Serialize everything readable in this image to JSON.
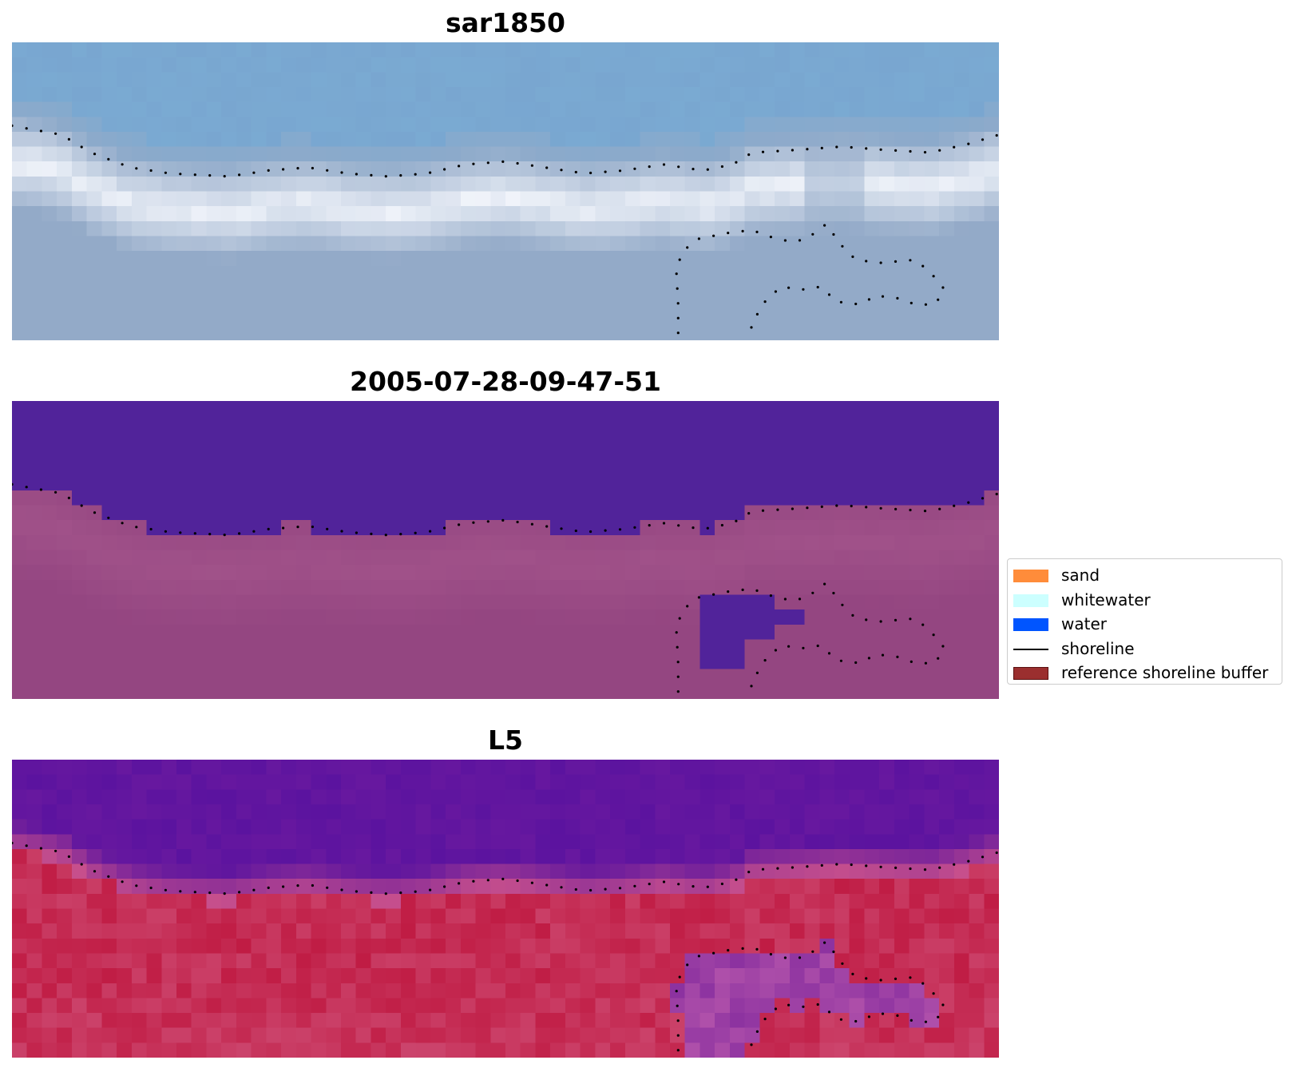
{
  "chart_data": [
    {
      "type": "heatmap",
      "title": "sar1850",
      "style": "rgb"
    },
    {
      "type": "heatmap",
      "title": "2005-07-28-09-47-51",
      "style": "classification"
    },
    {
      "type": "heatmap",
      "title": "L5",
      "style": "index"
    }
  ],
  "legend": {
    "placement": "right",
    "items": [
      {
        "label": "sand",
        "kind": "patch",
        "color": "#ff8c3a"
      },
      {
        "label": "whitewater",
        "kind": "patch",
        "color": "#ccffff"
      },
      {
        "label": "water",
        "kind": "patch",
        "color": "#0055ff"
      },
      {
        "label": "shoreline",
        "kind": "line",
        "color": "#000000"
      },
      {
        "label": "reference shoreline buffer",
        "kind": "patch",
        "color": "#9b2f2f",
        "edge": "#5a1010"
      }
    ]
  },
  "colors": {
    "sar_sky": "#7aaad2",
    "sar_foam": "#f2f5fb",
    "sar_lower": "#93aac8",
    "class_water": "#51239a",
    "class_sand": "#944681",
    "index_dark": "#5b139f",
    "index_red": "#c01c44"
  }
}
